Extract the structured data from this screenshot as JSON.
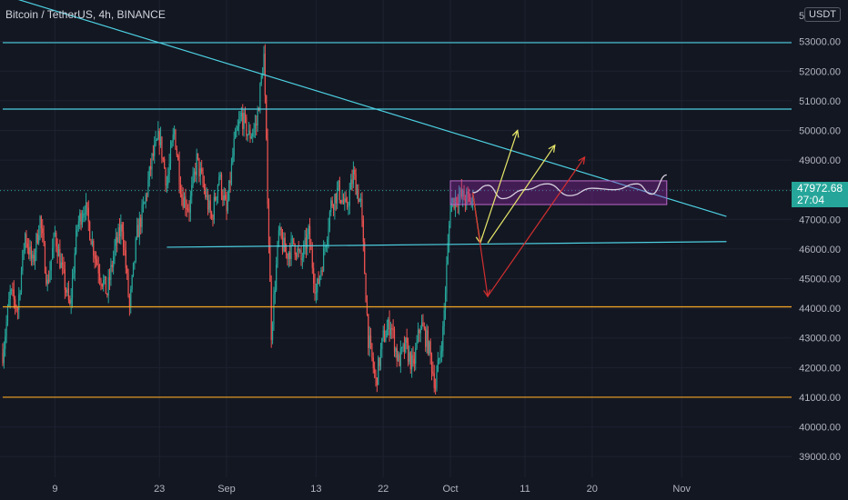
{
  "header": {
    "title": "Bitcoin / TetherUS, 4h, BINANCE",
    "currency": "USDT",
    "top_tick_partial": "5"
  },
  "price_badge": {
    "price": "47972.68",
    "countdown": "27:04"
  },
  "colors": {
    "background": "#131722",
    "up": "#26a69a",
    "down": "#ef5350",
    "cyan_line": "#4dd0e1",
    "orange_line": "#f5a623",
    "purple_box": "#9c27b0",
    "yellow_arrow": "#e8e86a",
    "red_arrow": "#d32f2f"
  },
  "chart_data": {
    "type": "candlestick",
    "title": "Bitcoin / TetherUS, 4h, BINANCE",
    "y_axis": {
      "ticks": [
        "39000.00",
        "40000.00",
        "41000.00",
        "42000.00",
        "43000.00",
        "44000.00",
        "45000.00",
        "46000.00",
        "47000.00",
        "48000.00",
        "49000.00",
        "50000.00",
        "51000.00",
        "52000.00",
        "53000.00"
      ],
      "range": [
        38300,
        54400
      ]
    },
    "x_axis": {
      "ticks": [
        "9",
        "23",
        "Sep",
        "13",
        "22",
        "Oct",
        "11",
        "20",
        "Nov"
      ]
    },
    "price_path": [
      [
        "2021-08-02",
        42500
      ],
      [
        "2021-08-03",
        44500
      ],
      [
        "2021-08-04",
        44000
      ],
      [
        "2021-08-05",
        46500
      ],
      [
        "2021-08-06",
        45500
      ],
      [
        "2021-08-07",
        47000
      ],
      [
        "2021-08-08",
        44800
      ],
      [
        "2021-08-09",
        46500
      ],
      [
        "2021-08-10",
        45200
      ],
      [
        "2021-08-11",
        44000
      ],
      [
        "2021-08-12",
        46800
      ],
      [
        "2021-08-13",
        47500
      ],
      [
        "2021-08-14",
        46200
      ],
      [
        "2021-08-15",
        45200
      ],
      [
        "2021-08-16",
        44500
      ],
      [
        "2021-08-17",
        46000
      ],
      [
        "2021-08-18",
        46800
      ],
      [
        "2021-08-19",
        44000
      ],
      [
        "2021-08-20",
        46500
      ],
      [
        "2021-08-21",
        47500
      ],
      [
        "2021-08-22",
        49000
      ],
      [
        "2021-08-23",
        49800
      ],
      [
        "2021-08-24",
        48200
      ],
      [
        "2021-08-25",
        50000
      ],
      [
        "2021-08-26",
        47800
      ],
      [
        "2021-08-27",
        47400
      ],
      [
        "2021-08-28",
        49000
      ],
      [
        "2021-08-29",
        48000
      ],
      [
        "2021-08-30",
        47000
      ],
      [
        "2021-08-31",
        48500
      ],
      [
        "2021-09-01",
        47200
      ],
      [
        "2021-09-02",
        49500
      ],
      [
        "2021-09-03",
        50500
      ],
      [
        "2021-09-04",
        49800
      ],
      [
        "2021-09-05",
        50200
      ],
      [
        "2021-09-06",
        52500
      ],
      [
        "2021-09-07",
        43200
      ],
      [
        "2021-09-08",
        46500
      ],
      [
        "2021-09-09",
        45800
      ],
      [
        "2021-09-10",
        46200
      ],
      [
        "2021-09-11",
        45600
      ],
      [
        "2021-09-12",
        46500
      ],
      [
        "2021-09-13",
        44500
      ],
      [
        "2021-09-14",
        45800
      ],
      [
        "2021-09-15",
        47500
      ],
      [
        "2021-09-16",
        48000
      ],
      [
        "2021-09-17",
        47300
      ],
      [
        "2021-09-18",
        48500
      ],
      [
        "2021-09-19",
        47500
      ],
      [
        "2021-09-20",
        43000
      ],
      [
        "2021-09-21",
        41500
      ],
      [
        "2021-09-22",
        43000
      ],
      [
        "2021-09-23",
        43500
      ],
      [
        "2021-09-24",
        42200
      ],
      [
        "2021-09-25",
        42700
      ],
      [
        "2021-09-26",
        42000
      ],
      [
        "2021-09-27",
        43500
      ],
      [
        "2021-09-28",
        42800
      ],
      [
        "2021-09-29",
        41400
      ],
      [
        "2021-09-30",
        43200
      ],
      [
        "2021-10-01",
        47500
      ],
      [
        "2021-10-02",
        47800
      ],
      [
        "2021-10-03",
        47700
      ],
      [
        "2021-10-04",
        47600
      ]
    ],
    "horizontal_lines": [
      {
        "price": 52960,
        "color": "cyan",
        "from": "2021-08-02"
      },
      {
        "price": 50720,
        "color": "cyan",
        "from": "2021-08-02"
      },
      {
        "price": 44050,
        "color": "orange",
        "from": "2021-08-02"
      },
      {
        "price": 41000,
        "color": "orange",
        "from": "2021-08-02"
      }
    ],
    "trend_lines": [
      {
        "from": [
          "2021-08-03",
          54500
        ],
        "to": [
          "2021-11-07",
          47100
        ],
        "color": "cyan"
      },
      {
        "from": [
          "2021-08-24",
          46060
        ],
        "to": [
          "2021-11-07",
          46250
        ],
        "color": "cyan"
      }
    ],
    "range_box": {
      "x": [
        "2021-10-01",
        "2021-10-30"
      ],
      "y": [
        47500,
        48300
      ],
      "color": "purple"
    },
    "projection_curve": [
      [
        "2021-10-04",
        47900
      ],
      [
        "2021-10-06",
        48150
      ],
      [
        "2021-10-08",
        47700
      ],
      [
        "2021-10-11",
        48000
      ],
      [
        "2021-10-14",
        48200
      ],
      [
        "2021-10-17",
        47800
      ],
      [
        "2021-10-20",
        48050
      ],
      [
        "2021-10-23",
        48000
      ],
      [
        "2021-10-26",
        48200
      ],
      [
        "2021-10-28",
        47850
      ],
      [
        "2021-10-30",
        48500
      ]
    ],
    "projection_arrows": [
      {
        "color": "yellow",
        "points": [
          [
            "2021-10-04",
            47900
          ],
          [
            "2021-10-05",
            46200
          ],
          [
            "2021-10-10",
            50000
          ]
        ]
      },
      {
        "color": "yellow",
        "points": [
          [
            "2021-10-06",
            46200
          ],
          [
            "2021-10-15",
            49500
          ]
        ]
      },
      {
        "color": "red",
        "points": [
          [
            "2021-10-04",
            47900
          ],
          [
            "2021-10-06",
            44400
          ],
          [
            "2021-10-19",
            49100
          ]
        ]
      }
    ],
    "last_price": 47972.68,
    "grid": true
  }
}
